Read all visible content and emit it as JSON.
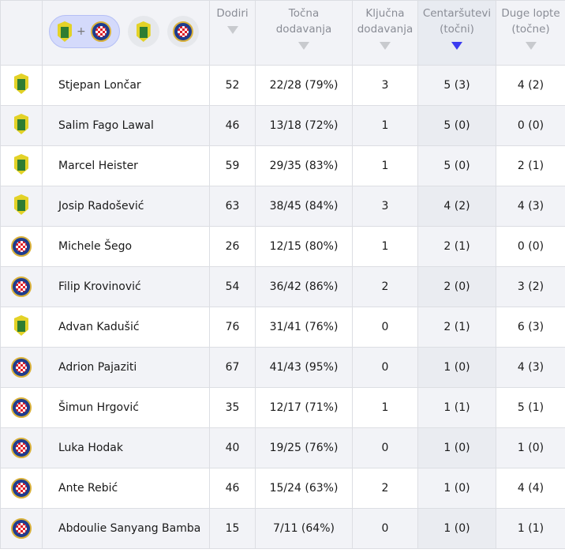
{
  "header": {
    "filter_plus": "+",
    "columns": [
      "Dodiri",
      "Točna dodavanja",
      "Ključna dodavanja",
      "Centaršutevi (točni)",
      "Duge lopte (točne)"
    ],
    "sorted_column": "Centaršutevi (točni)",
    "active_color": "#3b3bf0"
  },
  "rows": [
    {
      "team": "istra",
      "name": "Stjepan Lončar",
      "touches": "52",
      "passes": "22/28 (79%)",
      "key": "3",
      "crosses": "5 (3)",
      "long": "4 (2)"
    },
    {
      "team": "istra",
      "name": "Salim Fago Lawal",
      "touches": "46",
      "passes": "13/18 (72%)",
      "key": "1",
      "crosses": "5 (0)",
      "long": "0 (0)"
    },
    {
      "team": "istra",
      "name": "Marcel Heister",
      "touches": "59",
      "passes": "29/35 (83%)",
      "key": "1",
      "crosses": "5 (0)",
      "long": "2 (1)"
    },
    {
      "team": "istra",
      "name": "Josip Radošević",
      "touches": "63",
      "passes": "38/45 (84%)",
      "key": "3",
      "crosses": "4 (2)",
      "long": "4 (3)"
    },
    {
      "team": "hajduk",
      "name": "Michele Šego",
      "touches": "26",
      "passes": "12/15 (80%)",
      "key": "1",
      "crosses": "2 (1)",
      "long": "0 (0)"
    },
    {
      "team": "hajduk",
      "name": "Filip Krovinović",
      "touches": "54",
      "passes": "36/42 (86%)",
      "key": "2",
      "crosses": "2 (0)",
      "long": "3 (2)"
    },
    {
      "team": "istra",
      "name": "Advan Kadušić",
      "touches": "76",
      "passes": "31/41 (76%)",
      "key": "0",
      "crosses": "2 (1)",
      "long": "6 (3)"
    },
    {
      "team": "hajduk",
      "name": "Adrion Pajaziti",
      "touches": "67",
      "passes": "41/43 (95%)",
      "key": "0",
      "crosses": "1 (0)",
      "long": "4 (3)"
    },
    {
      "team": "hajduk",
      "name": "Šimun Hrgović",
      "touches": "35",
      "passes": "12/17 (71%)",
      "key": "1",
      "crosses": "1 (1)",
      "long": "5 (1)"
    },
    {
      "team": "hajduk",
      "name": "Luka Hodak",
      "touches": "40",
      "passes": "19/25 (76%)",
      "key": "0",
      "crosses": "1 (0)",
      "long": "1 (0)"
    },
    {
      "team": "hajduk",
      "name": "Ante Rebić",
      "touches": "46",
      "passes": "15/24 (63%)",
      "key": "2",
      "crosses": "1 (0)",
      "long": "4 (4)"
    },
    {
      "team": "hajduk",
      "name": "Abdoulie Sanyang Bamba",
      "touches": "15",
      "passes": "7/11 (64%)",
      "key": "0",
      "crosses": "1 (0)",
      "long": "1 (1)"
    }
  ]
}
